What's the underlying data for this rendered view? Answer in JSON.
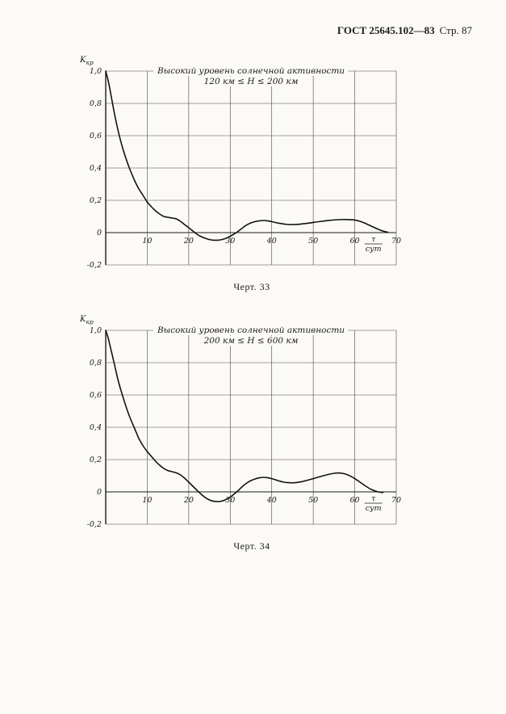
{
  "header": {
    "standard": "ГОСТ 25645.102—83",
    "page": "Стр. 87"
  },
  "chart_data": [
    {
      "type": "line",
      "title": "Высокий уровень солнечной активности",
      "subtitle": "120 км ≤ H ≤ 200 км",
      "caption": "Черт. 33",
      "ylabel_base": "K",
      "ylabel_sub": "кр",
      "xlabel_numerator": "τ",
      "xlabel_denominator": "сут",
      "xlim": [
        0,
        70
      ],
      "ylim": [
        -0.2,
        1.0
      ],
      "x_ticks": [
        10,
        20,
        30,
        40,
        50,
        60,
        70
      ],
      "y_ticks": [
        1.0,
        0.8,
        0.6,
        0.4,
        0.2,
        0,
        -0.2
      ],
      "y_tick_labels": [
        "1,0",
        "0,8",
        "0,6",
        "0,4",
        "0,2",
        "0",
        "-0,2"
      ],
      "grid": true,
      "points": [
        [
          0,
          1.0
        ],
        [
          0.5,
          0.95
        ],
        [
          1,
          0.89
        ],
        [
          2,
          0.75
        ],
        [
          3,
          0.63
        ],
        [
          4,
          0.53
        ],
        [
          5,
          0.45
        ],
        [
          6,
          0.38
        ],
        [
          7,
          0.32
        ],
        [
          8,
          0.27
        ],
        [
          9,
          0.23
        ],
        [
          10,
          0.19
        ],
        [
          11,
          0.16
        ],
        [
          12,
          0.135
        ],
        [
          13,
          0.115
        ],
        [
          14,
          0.1
        ],
        [
          15,
          0.095
        ],
        [
          16,
          0.09
        ],
        [
          17,
          0.085
        ],
        [
          18,
          0.07
        ],
        [
          19,
          0.05
        ],
        [
          20,
          0.03
        ],
        [
          21,
          0.01
        ],
        [
          22,
          -0.01
        ],
        [
          23,
          -0.025
        ],
        [
          24,
          -0.035
        ],
        [
          25,
          -0.043
        ],
        [
          26,
          -0.047
        ],
        [
          27,
          -0.047
        ],
        [
          28,
          -0.043
        ],
        [
          29,
          -0.035
        ],
        [
          30,
          -0.022
        ],
        [
          31,
          -0.008
        ],
        [
          32,
          0.01
        ],
        [
          33,
          0.03
        ],
        [
          34,
          0.048
        ],
        [
          35,
          0.06
        ],
        [
          36,
          0.068
        ],
        [
          37,
          0.073
        ],
        [
          38,
          0.075
        ],
        [
          39,
          0.073
        ],
        [
          40,
          0.068
        ],
        [
          41,
          0.062
        ],
        [
          42,
          0.057
        ],
        [
          43,
          0.053
        ],
        [
          44,
          0.05
        ],
        [
          45,
          0.05
        ],
        [
          46,
          0.051
        ],
        [
          47,
          0.053
        ],
        [
          48,
          0.056
        ],
        [
          50,
          0.063
        ],
        [
          52,
          0.07
        ],
        [
          54,
          0.076
        ],
        [
          56,
          0.08
        ],
        [
          58,
          0.081
        ],
        [
          60,
          0.078
        ],
        [
          61,
          0.072
        ],
        [
          62,
          0.063
        ],
        [
          63,
          0.052
        ],
        [
          64,
          0.04
        ],
        [
          65,
          0.028
        ],
        [
          66,
          0.017
        ],
        [
          67,
          0.008
        ],
        [
          68,
          0.002
        ]
      ]
    },
    {
      "type": "line",
      "title": "Высокий уровень солнечной активности",
      "subtitle": "200 км ≤ H ≤ 600 км",
      "caption": "Черт. 34",
      "ylabel_base": "K",
      "ylabel_sub": "кр",
      "xlabel_numerator": "τ",
      "xlabel_denominator": "сут",
      "xlim": [
        0,
        70
      ],
      "ylim": [
        -0.2,
        1.0
      ],
      "x_ticks": [
        10,
        20,
        30,
        40,
        50,
        60,
        70
      ],
      "y_ticks": [
        1.0,
        0.8,
        0.6,
        0.4,
        0.2,
        0,
        -0.2
      ],
      "y_tick_labels": [
        "1,0",
        "0,8",
        "0,6",
        "0,4",
        "0,2",
        "0",
        "-0,2"
      ],
      "grid": true,
      "points": [
        [
          0,
          1.0
        ],
        [
          0.5,
          0.96
        ],
        [
          1,
          0.91
        ],
        [
          2,
          0.8
        ],
        [
          3,
          0.69
        ],
        [
          4,
          0.6
        ],
        [
          5,
          0.52
        ],
        [
          6,
          0.45
        ],
        [
          7,
          0.39
        ],
        [
          8,
          0.33
        ],
        [
          9,
          0.285
        ],
        [
          10,
          0.25
        ],
        [
          11,
          0.22
        ],
        [
          12,
          0.19
        ],
        [
          13,
          0.165
        ],
        [
          14,
          0.145
        ],
        [
          15,
          0.132
        ],
        [
          16,
          0.125
        ],
        [
          17,
          0.118
        ],
        [
          18,
          0.105
        ],
        [
          19,
          0.085
        ],
        [
          20,
          0.06
        ],
        [
          21,
          0.035
        ],
        [
          22,
          0.01
        ],
        [
          23,
          -0.015
        ],
        [
          24,
          -0.035
        ],
        [
          25,
          -0.05
        ],
        [
          26,
          -0.058
        ],
        [
          27,
          -0.06
        ],
        [
          28,
          -0.057
        ],
        [
          29,
          -0.047
        ],
        [
          30,
          -0.032
        ],
        [
          31,
          -0.012
        ],
        [
          32,
          0.01
        ],
        [
          33,
          0.035
        ],
        [
          34,
          0.055
        ],
        [
          35,
          0.07
        ],
        [
          36,
          0.08
        ],
        [
          37,
          0.087
        ],
        [
          38,
          0.09
        ],
        [
          39,
          0.088
        ],
        [
          40,
          0.082
        ],
        [
          41,
          0.074
        ],
        [
          42,
          0.066
        ],
        [
          43,
          0.06
        ],
        [
          44,
          0.057
        ],
        [
          45,
          0.056
        ],
        [
          46,
          0.058
        ],
        [
          47,
          0.062
        ],
        [
          48,
          0.068
        ],
        [
          50,
          0.082
        ],
        [
          52,
          0.097
        ],
        [
          54,
          0.11
        ],
        [
          55,
          0.115
        ],
        [
          56,
          0.117
        ],
        [
          57,
          0.115
        ],
        [
          58,
          0.108
        ],
        [
          59,
          0.097
        ],
        [
          60,
          0.082
        ],
        [
          61,
          0.065
        ],
        [
          62,
          0.047
        ],
        [
          63,
          0.03
        ],
        [
          64,
          0.015
        ],
        [
          65,
          0.005
        ],
        [
          66,
          -0.002
        ],
        [
          66.8,
          -0.004
        ]
      ]
    }
  ]
}
